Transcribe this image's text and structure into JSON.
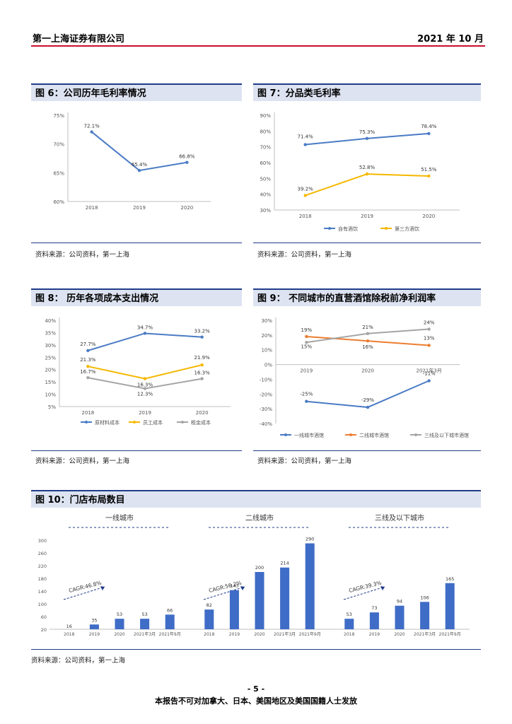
{
  "header": {
    "company": "第一上海证券有限公司",
    "date": "2021 年 10 月"
  },
  "colors": {
    "blue": "#4a7bc4",
    "yellow": "#f5b800",
    "gray": "#a5a5a5",
    "orange": "#ed7d31",
    "bar": "#3f6cc6",
    "accent": "#1f3c88"
  },
  "figures": {
    "fig6": {
      "title": "图 6：公司历年毛利率情况",
      "source": "资料来源：公司资料，第一上海"
    },
    "fig7": {
      "title": "图 7：分品类毛利率",
      "source": "资料来源：公司资料，第一上海"
    },
    "fig8": {
      "title": "图 8： 历年各项成本支出情况",
      "source": "资料来源：公司资料，第一上海"
    },
    "fig9": {
      "title": "图 9： 不同城市的直营酒馆除税前净利润率",
      "source": "资料来源：公司资料，第一上海"
    },
    "fig10": {
      "title": "图 10：门店布局数目",
      "source": "资料来源：公司资料，第一上海"
    }
  },
  "chart_data": [
    {
      "id": "fig6",
      "type": "line",
      "categories": [
        "2018",
        "2019",
        "2020"
      ],
      "yticks": [
        "75%",
        "70%",
        "65%",
        "60%"
      ],
      "ylim": [
        60,
        75
      ],
      "series": [
        {
          "name": "毛利率",
          "values": [
            72.1,
            65.4,
            66.8
          ],
          "labels": [
            "72.1%",
            "65.4%",
            "66.8%"
          ]
        }
      ]
    },
    {
      "id": "fig7",
      "type": "line",
      "categories": [
        "2018",
        "2019",
        "2020"
      ],
      "yticks": [
        "90%",
        "80%",
        "70%",
        "60%",
        "50%",
        "40%",
        "30%"
      ],
      "ylim": [
        30,
        90
      ],
      "series": [
        {
          "name": "自有酒饮",
          "values": [
            71.4,
            75.3,
            78.4
          ],
          "labels": [
            "71.4%",
            "75.3%",
            "78.4%"
          ]
        },
        {
          "name": "第三方酒饮",
          "values": [
            39.2,
            52.8,
            51.5
          ],
          "labels": [
            "39.2%",
            "52.8%",
            "51.5%"
          ]
        }
      ]
    },
    {
      "id": "fig8",
      "type": "line",
      "categories": [
        "2018",
        "2019",
        "2020"
      ],
      "yticks": [
        "40%",
        "35%",
        "30%",
        "25%",
        "20%",
        "15%",
        "10%",
        "5%"
      ],
      "ylim": [
        5,
        40
      ],
      "series": [
        {
          "name": "原材料成本",
          "values": [
            27.7,
            34.7,
            33.2
          ],
          "labels": [
            "27.7%",
            "34.7%",
            "33.2%"
          ]
        },
        {
          "name": "员工成本",
          "values": [
            21.3,
            16.3,
            21.9
          ],
          "labels": [
            "21.3%",
            "16.3%",
            "21.9%"
          ]
        },
        {
          "name": "租金成本",
          "values": [
            16.7,
            12.3,
            16.3
          ],
          "labels": [
            "16.7%",
            "12.3%",
            "16.3%"
          ]
        }
      ]
    },
    {
      "id": "fig9",
      "type": "line",
      "categories": [
        "2019",
        "2020",
        "2021年3月"
      ],
      "yticks": [
        "30%",
        "20%",
        "10%",
        "0%",
        "-10%",
        "-20%",
        "-30%",
        "-40%"
      ],
      "ylim": [
        -40,
        30
      ],
      "series": [
        {
          "name": "一线城市酒馆",
          "values": [
            -25,
            -29,
            -11
          ],
          "labels": [
            "-25%",
            "-29%",
            "-11%"
          ]
        },
        {
          "name": "二线城市酒馆",
          "values": [
            19,
            16,
            13
          ],
          "labels": [
            "19%",
            "16%",
            "13%"
          ]
        },
        {
          "name": "三线及以下城市酒馆",
          "values": [
            15,
            21,
            24
          ],
          "labels": [
            "15%",
            "21%",
            "24%"
          ]
        }
      ]
    },
    {
      "id": "fig10",
      "type": "bar",
      "yticks": [
        "300",
        "260",
        "220",
        "180",
        "140",
        "100",
        "60",
        "20"
      ],
      "ylim": [
        20,
        300
      ],
      "groups": [
        {
          "name": "一线城市",
          "categories": [
            "2018",
            "2019",
            "2020",
            "2021年3月",
            "2021年9月"
          ],
          "values": [
            16,
            35,
            53,
            53,
            66
          ],
          "labels": [
            "16",
            "35",
            "53",
            "53",
            "66"
          ],
          "cagr": "CAGR:46.8%"
        },
        {
          "name": "二线城市",
          "categories": [
            "2018",
            "2019",
            "2020",
            "2021年3月",
            "2021年9月"
          ],
          "values": [
            82,
            143,
            200,
            214,
            290
          ],
          "labels": [
            "82",
            "143",
            "200",
            "214",
            "290"
          ],
          "cagr": "CAGR:56.2%"
        },
        {
          "name": "三线及以下城市",
          "categories": [
            "2018",
            "2019",
            "2020",
            "2021年3月",
            "2021年9月"
          ],
          "values": [
            53,
            73,
            94,
            106,
            165
          ],
          "labels": [
            "53",
            "73",
            "94",
            "106",
            "165"
          ],
          "cagr": "CAGR:39.3%"
        }
      ]
    }
  ],
  "footer": {
    "page": "- 5 -",
    "note": "本报告不可对加拿大、日本、美国地区及美国国籍人士发放"
  }
}
